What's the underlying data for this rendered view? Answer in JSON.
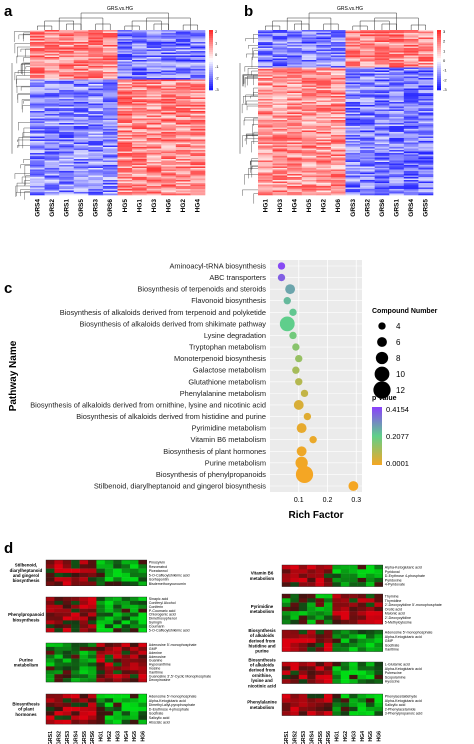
{
  "panels": {
    "a": {
      "letter": "a",
      "title": "GRS.vs.HG",
      "columns": [
        "GRS4",
        "GRS2",
        "GRS1",
        "GRS5",
        "GRS3",
        "GRS6",
        "HG5",
        "HG1",
        "HG3",
        "HG6",
        "HG2",
        "HG4"
      ],
      "scale_ticks": [
        "2",
        "1",
        "0",
        "-1",
        "-2",
        "-3"
      ]
    },
    "b": {
      "letter": "b",
      "title": "GRS.vs.HG",
      "columns": [
        "HG1",
        "HG3",
        "HG4",
        "HG5",
        "HG2",
        "HG6",
        "GRS3",
        "GRS2",
        "GRS6",
        "GRS1",
        "GRS4",
        "GRS5"
      ],
      "scale_ticks": [
        "3",
        "2",
        "1",
        "0",
        "-1",
        "-2",
        "-3"
      ]
    },
    "c": {
      "letter": "c"
    },
    "d": {
      "letter": "d",
      "columns": [
        "GRS1",
        "GRS2",
        "GRS3",
        "GRS4",
        "GRS5",
        "GRS6",
        "HG1",
        "HG2",
        "HG3",
        "HG4",
        "HG5",
        "HG6"
      ],
      "blocks": [
        {
          "title": "Stilbenoid, diarylheptanoid and gingerol biosynthesis",
          "compounds": [
            "Pinosylvin",
            "Resveratrol",
            "Piceatannol",
            "5-O-Caffeoylshikimic acid",
            "Isorhapontin",
            "Bisdemethoxycurcumin"
          ]
        },
        {
          "title": "Phenylpropanoid biosynthesis",
          "compounds": [
            "Sinapic acid",
            "Coniferyl Alcohol",
            "Coniferin",
            "P-Coumaric acid",
            "Chlorogenic acid",
            "Dimethoxyphenol",
            "Syringin",
            "Coumarin",
            "5-O-Caffeoylshikimic acid"
          ]
        },
        {
          "title": "Purine metabolism",
          "compounds": [
            "Adenosine 5'-monophosphate",
            "GMP",
            "Adenine",
            "Adenosine",
            "Guanine",
            "Hypoxanthine",
            "Inosine",
            "Xanthine",
            "Guanosine 3',5'-Cyclic Monophosphate",
            "Deoxyinosine"
          ]
        },
        {
          "title": "Biosynthesis of plant hormones",
          "compounds": [
            "Adenosine 5'-monophosphate",
            "Alpha-Ketoglutaric acid",
            "Dimethyl-allyl-pyrophosphate",
            "D-Erythrose 4-phosphate",
            "Isocitrate",
            "Salicylic acid",
            "Abscisic acid"
          ]
        },
        {
          "title": "Vitamin B6 metabolism",
          "compounds": [
            "Alpha-Ketoglutaric acid",
            "Pyridoxal",
            "D-Erythrose 4-phosphate",
            "Pyridoxine",
            "4-Pyridoxate"
          ]
        },
        {
          "title": "Pyrimidine metabolism",
          "compounds": [
            "Thymine",
            "Thymidine",
            "2'-Deoxycytidine 5'-monophosphate",
            "Orotic acid",
            "Malonic acid",
            "2'-Deoxycytidine",
            "5-Methylcytosine"
          ]
        },
        {
          "title": "Biosynthesis of alkaloids derived from histidine and purine",
          "compounds": [
            "Adenosine 5'-monophosphate",
            "Alpha-Ketoglutaric acid",
            "GMP",
            "Isocitrate",
            "Xanthine"
          ]
        },
        {
          "title": "Biosynthesis of alkaloids derived from ornithine, lysine and nicotinic acid",
          "compounds": [
            "L-Glutamic acid",
            "Alpha-Ketoglutaric acid",
            "Putrescine",
            "Scopolamine",
            "Hyoscine"
          ]
        },
        {
          "title": "Phenylalanine metabolism",
          "compounds": [
            "Phenylacetaldehyde",
            "Alpha-Ketoglutaric acid",
            "Salicylic acid",
            "2-Phenylacetamide",
            "3-Phenylpropanoic acid"
          ]
        }
      ]
    }
  },
  "chart_data": {
    "type": "scatter",
    "xlabel": "Rich Factor",
    "ylabel": "Pathway Name",
    "xlim": [
      0.0,
      0.32
    ],
    "x_ticks": [
      "0.1",
      "0.2",
      "0.3"
    ],
    "categories": [
      "Aminoacyl-tRNA biosynthesis",
      "ABC transporters",
      "Biosynthesis of terpenoids and steroids",
      "Flavonoid biosynthesis",
      "Biosynthesis of alkaloids derived from terpenoid and polyketide",
      "Biosynthesis of alkaloids derived from shikimate pathway",
      "Lysine degradation",
      "Tryptophan metabolism",
      "Monoterpenoid biosynthesis",
      "Galactose metabolism",
      "Glutathione metabolism",
      "Phenylalanine metabolism",
      "Biosynthesis of alkaloids derived from ornithine, lysine and nicotinic acid",
      "Biosynthesis of alkaloids derived from histidine and purine",
      "Pyrimidine metabolism",
      "Vitamin B6 metabolism",
      "Biosynthesis of plant hormones",
      "Purine metabolism",
      "Biosynthesis of phenylpropanoids",
      "Stilbenoid, diarylheptanoid and gingerol biosynthesis"
    ],
    "points": [
      {
        "x": 0.04,
        "size": 4,
        "p": 0.4
      },
      {
        "x": 0.04,
        "size": 4,
        "p": 0.37
      },
      {
        "x": 0.07,
        "size": 6,
        "p": 0.27
      },
      {
        "x": 0.06,
        "size": 4,
        "p": 0.24
      },
      {
        "x": 0.08,
        "size": 4,
        "p": 0.22
      },
      {
        "x": 0.06,
        "size": 10,
        "p": 0.21
      },
      {
        "x": 0.08,
        "size": 4,
        "p": 0.18
      },
      {
        "x": 0.09,
        "size": 4,
        "p": 0.15
      },
      {
        "x": 0.1,
        "size": 4,
        "p": 0.13
      },
      {
        "x": 0.09,
        "size": 4,
        "p": 0.11
      },
      {
        "x": 0.1,
        "size": 4,
        "p": 0.09
      },
      {
        "x": 0.12,
        "size": 4,
        "p": 0.07
      },
      {
        "x": 0.1,
        "size": 6,
        "p": 0.04
      },
      {
        "x": 0.13,
        "size": 4,
        "p": 0.03
      },
      {
        "x": 0.11,
        "size": 6,
        "p": 0.02
      },
      {
        "x": 0.15,
        "size": 4,
        "p": 0.015
      },
      {
        "x": 0.11,
        "size": 6,
        "p": 0.01
      },
      {
        "x": 0.11,
        "size": 8,
        "p": 0.005
      },
      {
        "x": 0.12,
        "size": 12,
        "p": 0.002
      },
      {
        "x": 0.29,
        "size": 6,
        "p": 0.001
      }
    ],
    "size_legend": {
      "title": "Compound Number",
      "values": [
        4,
        6,
        8,
        10,
        12
      ]
    },
    "color_legend": {
      "title": "p Value",
      "ticks": [
        "0.4154",
        "0.2077",
        "0.0001"
      ]
    },
    "colors": {
      "high": "#8a3ffc",
      "mid": "#5fd08a",
      "low": "#f5a623"
    }
  }
}
